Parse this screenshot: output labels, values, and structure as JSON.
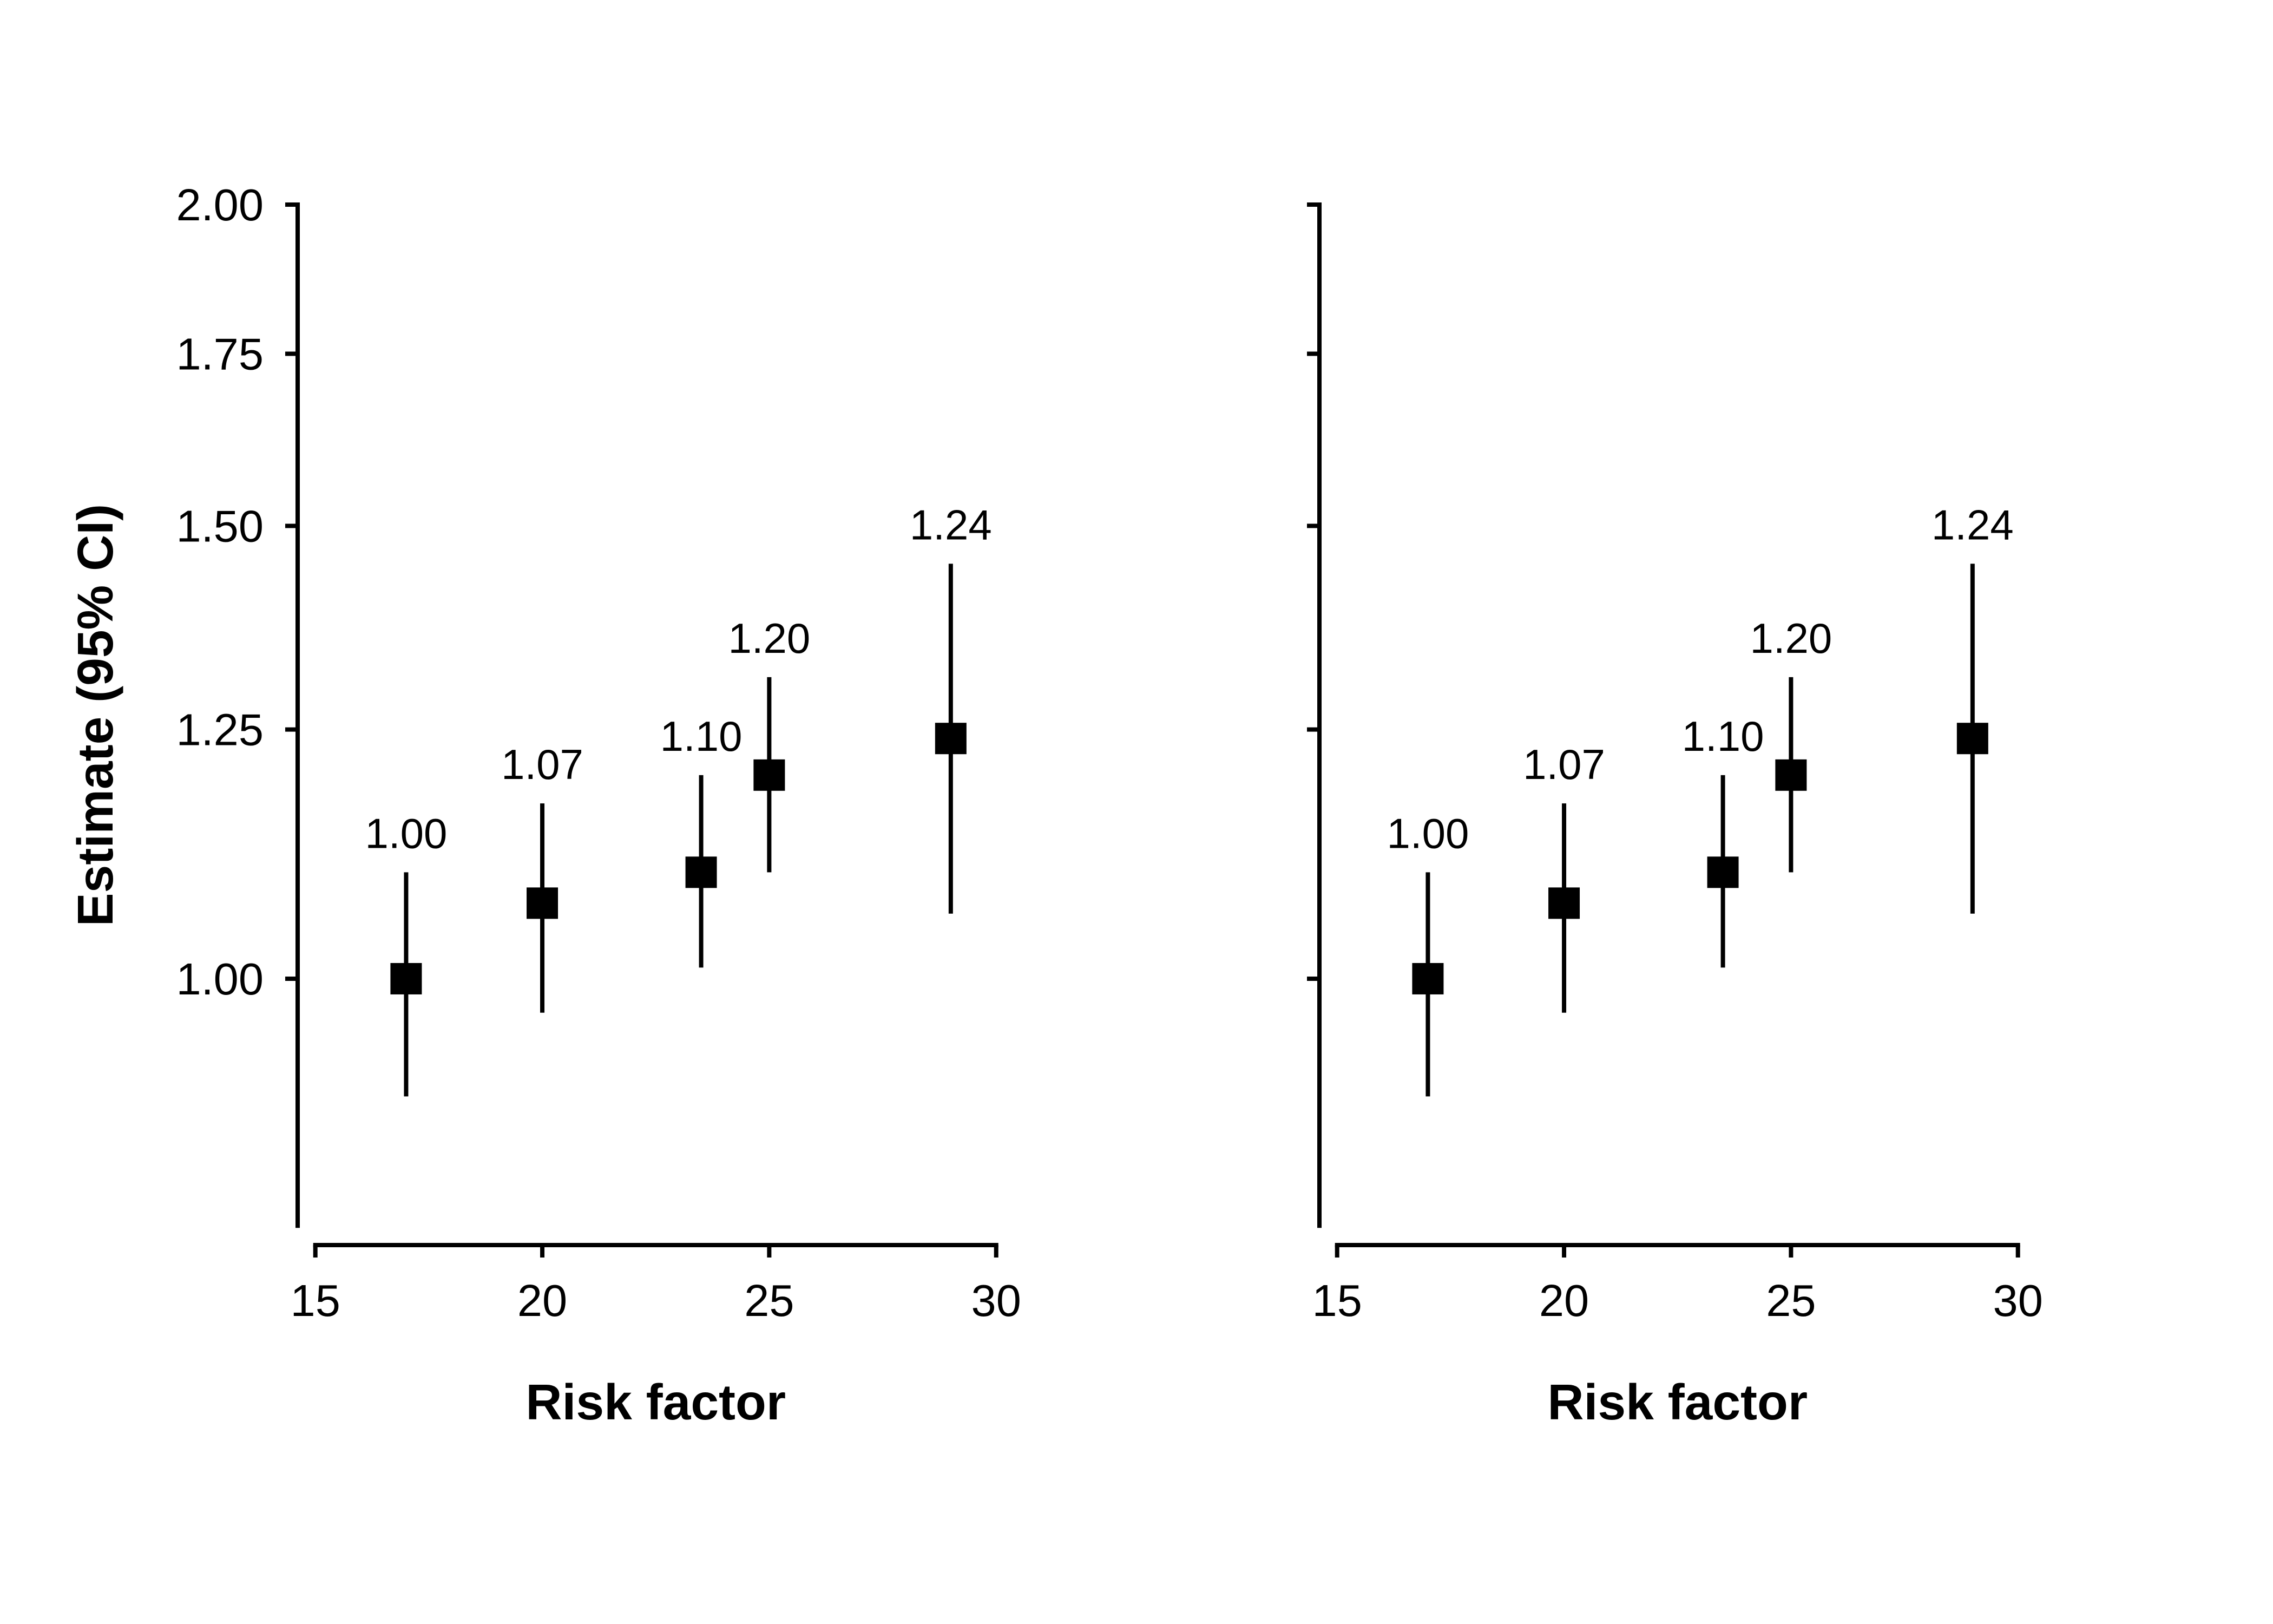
{
  "figure": {
    "kind": "two-panel estimate plot with 95% confidence intervals",
    "background_color": "#ffffff",
    "ink_color": "#000000"
  },
  "chart_data": {
    "type": "scatter",
    "title": "",
    "grid": false,
    "legend": null,
    "marker": "filled-square",
    "x_axis": {
      "label": "Risk factor",
      "range": [
        15,
        30
      ],
      "ticks": [
        15,
        20,
        25,
        30
      ],
      "tick_labels": [
        "15",
        "20",
        "25",
        "30"
      ]
    },
    "y_axis": {
      "label": "Estimate (95% CI)",
      "scale": "log",
      "range": [
        0.8,
        2.0
      ],
      "ticks": [
        1.0,
        1.25,
        1.5,
        1.75,
        2.0
      ],
      "tick_labels": [
        "1.00",
        "1.25",
        "1.50",
        "1.75",
        "2.00"
      ]
    },
    "series": {
      "x": [
        17,
        20,
        23.5,
        25,
        29
      ],
      "estimate": [
        1.0,
        1.07,
        1.1,
        1.2,
        1.24
      ],
      "ci_lower": [
        0.9,
        0.97,
        1.01,
        1.1,
        1.06
      ],
      "ci_upper": [
        1.1,
        1.17,
        1.2,
        1.31,
        1.45
      ],
      "point_labels": [
        "1.00",
        "1.07",
        "1.10",
        "1.20",
        "1.24"
      ]
    },
    "panels": [
      {
        "id": "left",
        "x_label": "Risk factor",
        "y_label": "Estimate (95% CI)",
        "show_y_tick_labels": true
      },
      {
        "id": "right",
        "x_label": "Risk factor",
        "y_label": "",
        "show_y_tick_labels": false
      }
    ]
  }
}
